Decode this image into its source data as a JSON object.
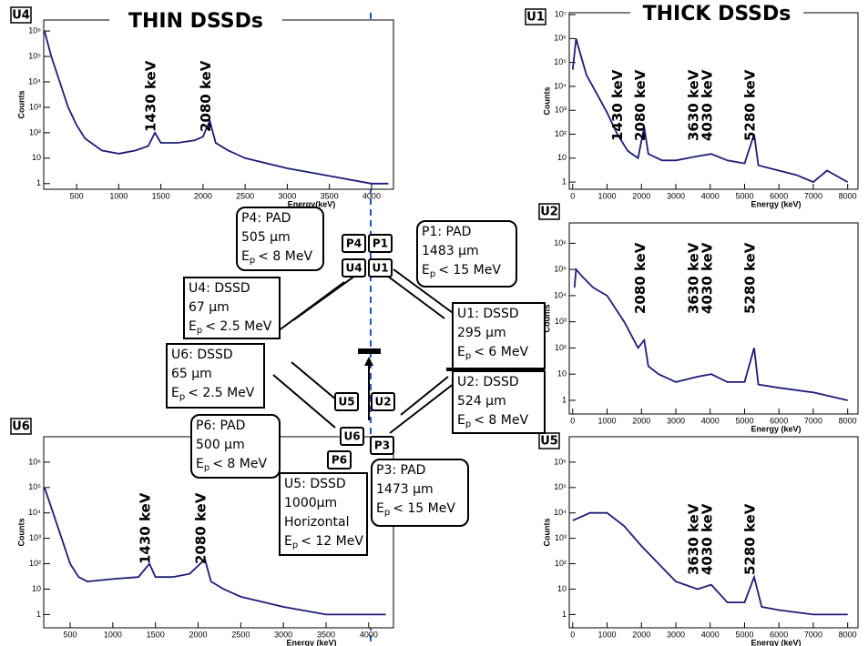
{
  "chart_data": [
    {
      "type": "line",
      "panel": "U4",
      "heading": "THIN DSSDs",
      "x_label": "Energy(keV)",
      "y_label": "Counts",
      "log_y": true,
      "color": "#1c1c78",
      "xlim": [
        110,
        4260
      ],
      "ylim": [
        0.6,
        2700000
      ],
      "xticks": [
        500,
        1000,
        1500,
        2000,
        2500,
        3000,
        3500,
        4000
      ],
      "yticks": [
        1,
        10,
        {
          "value": 100,
          "label": "10²"
        },
        {
          "value": 1000,
          "label": "10³"
        },
        {
          "value": 10000,
          "label": "10⁴"
        },
        {
          "value": 100000,
          "label": "10⁵"
        },
        {
          "value": 1000000,
          "label": "10⁶"
        }
      ],
      "x": [
        120,
        200,
        300,
        400,
        500,
        600,
        800,
        1000,
        1200,
        1350,
        1430,
        1500,
        1700,
        1900,
        2000,
        2080,
        2150,
        2300,
        2500,
        3000,
        3500,
        4000,
        4200
      ],
      "values": [
        1000000,
        100000,
        10000,
        1000,
        200,
        60,
        20,
        15,
        20,
        30,
        100,
        40,
        40,
        50,
        70,
        300,
        40,
        20,
        10,
        4,
        2,
        1,
        1
      ],
      "annotations": [
        {
          "text": "1430 keV",
          "x": 1430
        },
        {
          "text": "2080 keV",
          "x": 2080
        }
      ]
    },
    {
      "type": "line",
      "panel": "U1",
      "heading": "THICK DSSDs",
      "x_label": "Energy (keV)",
      "y_label": "Counts",
      "log_y": true,
      "color": "#1c1c78",
      "xlim": [
        -100,
        8300
      ],
      "ylim": [
        0.5,
        12000000
      ],
      "xticks": [
        0,
        1000,
        2000,
        3000,
        4000,
        5000,
        6000,
        7000,
        8000
      ],
      "yticks": [
        1,
        10,
        {
          "value": 100,
          "label": "10²"
        },
        {
          "value": 1000,
          "label": "10³"
        },
        {
          "value": 10000,
          "label": "10⁴"
        },
        {
          "value": 100000,
          "label": "10⁵"
        },
        {
          "value": 1000000,
          "label": "10⁶"
        },
        {
          "value": 10000000,
          "label": "10⁷"
        }
      ],
      "x": [
        0,
        100,
        200,
        400,
        700,
        1000,
        1300,
        1600,
        1900,
        2080,
        2200,
        2600,
        3000,
        3630,
        4030,
        4500,
        5000,
        5280,
        5400,
        6000,
        6500,
        7000,
        7400,
        8000
      ],
      "values": [
        50000,
        1000000,
        300000,
        30000,
        5000,
        800,
        100,
        20,
        10,
        200,
        15,
        8,
        8,
        12,
        15,
        8,
        6,
        100,
        5,
        3,
        2,
        1,
        3,
        1
      ],
      "annotations": [
        {
          "text": "1430 keV",
          "x": 1430
        },
        {
          "text": "2080 keV",
          "x": 2080
        },
        {
          "text": "3630 keV",
          "x": 3630
        },
        {
          "text": "4030 keV",
          "x": 4030
        },
        {
          "text": "5280 keV",
          "x": 5280
        }
      ]
    },
    {
      "type": "line",
      "panel": "U2",
      "x_label": "Energy (keV)",
      "y_label": "Counts",
      "log_y": true,
      "color": "#1c1c78",
      "xlim": [
        -100,
        8300
      ],
      "ylim": [
        0.3,
        6000000
      ],
      "xticks": [
        0,
        1000,
        2000,
        3000,
        4000,
        5000,
        6000,
        7000,
        8000
      ],
      "yticks": [
        1,
        10,
        {
          "value": 100,
          "label": "10²"
        },
        {
          "value": 1000,
          "label": "10³"
        },
        {
          "value": 10000,
          "label": "10⁴"
        },
        {
          "value": 100000,
          "label": "10⁵"
        },
        {
          "value": 1000000,
          "label": "10⁶"
        }
      ],
      "x": [
        50,
        100,
        300,
        600,
        1000,
        1500,
        1900,
        2080,
        2200,
        2500,
        3000,
        3630,
        4030,
        4500,
        5000,
        5280,
        5400,
        6000,
        7000,
        8000
      ],
      "values": [
        20000,
        100000,
        50000,
        20000,
        10000,
        1000,
        100,
        200,
        20,
        10,
        5,
        8,
        10,
        5,
        5,
        100,
        4,
        3,
        2,
        1
      ],
      "annotations": [
        {
          "text": "2080 keV",
          "x": 2080
        },
        {
          "text": "3630 keV",
          "x": 3630
        },
        {
          "text": "4030 keV",
          "x": 4030
        },
        {
          "text": "5280 keV",
          "x": 5280
        }
      ]
    },
    {
      "type": "line",
      "panel": "U6",
      "x_label": "Energy (keV)",
      "y_label": "Counts",
      "log_y": true,
      "color": "#1c1c78",
      "xlim": [
        190,
        4290
      ],
      "ylim": [
        0.3,
        10000000
      ],
      "xticks": [
        500,
        1000,
        1500,
        2000,
        2500,
        3000,
        3500,
        4000
      ],
      "yticks": [
        1,
        10,
        {
          "value": 100,
          "label": "10²"
        },
        {
          "value": 1000,
          "label": "10³"
        },
        {
          "value": 10000,
          "label": "10⁴"
        },
        {
          "value": 100000,
          "label": "10⁵"
        },
        {
          "value": 1000000,
          "label": "10⁶"
        }
      ],
      "x": [
        200,
        300,
        400,
        500,
        600,
        700,
        1000,
        1300,
        1430,
        1500,
        1700,
        1900,
        2080,
        2150,
        2300,
        2500,
        3000,
        3500,
        4000,
        4200
      ],
      "values": [
        100000,
        10000,
        1000,
        100,
        30,
        20,
        25,
        30,
        100,
        30,
        30,
        40,
        150,
        20,
        10,
        5,
        2,
        1,
        1,
        1
      ],
      "annotations": [
        {
          "text": "1430 keV",
          "x": 1430
        },
        {
          "text": "2080 keV",
          "x": 2080
        }
      ]
    },
    {
      "type": "line",
      "panel": "U5",
      "x_label": "Energy (keV)",
      "y_label": "Counts",
      "log_y": true,
      "color": "#1c1c78",
      "xlim": [
        -100,
        8300
      ],
      "ylim": [
        0.3,
        10000000
      ],
      "xticks": [
        0,
        1000,
        2000,
        3000,
        4000,
        5000,
        6000,
        7000,
        8000
      ],
      "yticks": [
        1,
        10,
        {
          "value": 100,
          "label": "10²"
        },
        {
          "value": 1000,
          "label": "10³"
        },
        {
          "value": 10000,
          "label": "10⁴"
        },
        {
          "value": 100000,
          "label": "10⁵"
        },
        {
          "value": 1000000,
          "label": "10⁶"
        }
      ],
      "x": [
        0,
        500,
        1000,
        1500,
        2000,
        2500,
        3000,
        3630,
        4030,
        4500,
        5000,
        5280,
        5500,
        6000,
        7000,
        8000
      ],
      "values": [
        5000,
        10000,
        10000,
        3000,
        500,
        100,
        20,
        10,
        15,
        3,
        3,
        30,
        2,
        1.5,
        1,
        1
      ],
      "annotations": [
        {
          "text": "3630 keV",
          "x": 3630
        },
        {
          "text": "4030 keV",
          "x": 4030
        },
        {
          "text": "5280 keV",
          "x": 5280
        }
      ]
    }
  ],
  "diagram": {
    "detector_labels": [
      "P4",
      "P1",
      "U4",
      "U1",
      "U5",
      "U2",
      "U6",
      "P3",
      "P6"
    ],
    "info_boxes": [
      {
        "lines": [
          "P4: PAD",
          "505 µm"
        ],
        "energy": {
          "symbol": "E",
          "subscript": "p",
          "limit": "< 8 MeV"
        }
      },
      {
        "lines": [
          "P1: PAD",
          "1483 µm"
        ],
        "energy": {
          "symbol": "E",
          "subscript": "p",
          "limit": "< 15 MeV"
        }
      },
      {
        "lines": [
          "U4: DSSD",
          "67 µm"
        ],
        "energy": {
          "symbol": "E",
          "subscript": "p",
          "limit": "< 2.5 MeV"
        }
      },
      {
        "lines": [
          "U1: DSSD",
          "295 µm"
        ],
        "energy": {
          "symbol": "E",
          "subscript": "p",
          "limit": "< 6 MeV"
        }
      },
      {
        "lines": [
          "U6: DSSD",
          "65 µm"
        ],
        "energy": {
          "symbol": "E",
          "subscript": "p",
          "limit": "< 2.5 MeV"
        }
      },
      {
        "lines": [
          "U2: DSSD",
          "524 µm"
        ],
        "energy": {
          "symbol": "E",
          "subscript": "p",
          "limit": "< 8 MeV"
        }
      },
      {
        "lines": [
          "P6: PAD",
          "500 µm"
        ],
        "energy": {
          "symbol": "E",
          "subscript": "p",
          "limit": "< 8 MeV"
        }
      },
      {
        "lines": [
          "U5: DSSD",
          "1000µm",
          "Horizontal"
        ],
        "energy": {
          "symbol": "E",
          "subscript": "p",
          "limit": "< 12 MeV"
        }
      },
      {
        "lines": [
          "P3: PAD",
          "1473 µm"
        ],
        "energy": {
          "symbol": "E",
          "subscript": "p",
          "limit": "< 15 MeV"
        }
      }
    ]
  }
}
